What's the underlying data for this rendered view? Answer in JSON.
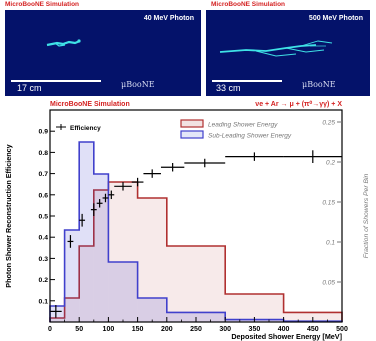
{
  "event_displays": [
    {
      "header": "MicroBooNE Simulation",
      "label": "40 MeV Photon",
      "scale": "17 cm",
      "logo": "μBooNE"
    },
    {
      "header": "MicroBooNE Simulation",
      "label": "500 MeV Photon",
      "scale": "33 cm",
      "logo": "μBooNE"
    }
  ],
  "colors": {
    "panel_bg": "#04126a",
    "header_red": "#d42222",
    "track": "#3fe2e6",
    "leading": "#b03030",
    "subleading": "#4040cc",
    "efficiency": "#000000",
    "right_axis": "#777777"
  },
  "chart_data": {
    "type": "histogram+errorbar",
    "title": "MicroBooNE Simulation",
    "process": "νe + Ar → μ + (π⁰→γγ) + X",
    "xlabel": "Deposited Shower Energy [MeV]",
    "ylabel": "Photon Shower Reconstruction Efficiency",
    "y2label": "Fraction of Showers Per Bin",
    "xlim": [
      0,
      500
    ],
    "ylim": [
      0,
      1.0
    ],
    "y2lim": [
      0,
      0.265
    ],
    "xticks": [
      "0",
      "50",
      "100",
      "150",
      "200",
      "250",
      "300",
      "350",
      "400",
      "450",
      "500"
    ],
    "yticks": [
      "0.1",
      "0.2",
      "0.3",
      "0.4",
      "0.5",
      "0.6",
      "0.7",
      "0.8",
      "0.9"
    ],
    "y2ticks": [
      "0.05",
      "0.1",
      "0.15",
      "0.2",
      "0.25"
    ],
    "legend_left": [
      "Efficiency"
    ],
    "legend_right": [
      "Leading Shower Energy",
      "Sub-Leading Shower Energy"
    ],
    "efficiency": {
      "name": "Efficiency",
      "points": [
        {
          "x": 10,
          "y": 0.05,
          "xerr": 10,
          "yerr": 0.03
        },
        {
          "x": 35,
          "y": 0.38,
          "xerr": 5,
          "yerr": 0.03
        },
        {
          "x": 55,
          "y": 0.48,
          "xerr": 5,
          "yerr": 0.03
        },
        {
          "x": 75,
          "y": 0.53,
          "xerr": 5,
          "yerr": 0.03
        },
        {
          "x": 85,
          "y": 0.56,
          "xerr": 5,
          "yerr": 0.02
        },
        {
          "x": 95,
          "y": 0.585,
          "xerr": 5,
          "yerr": 0.02
        },
        {
          "x": 105,
          "y": 0.6,
          "xerr": 5,
          "yerr": 0.02
        },
        {
          "x": 125,
          "y": 0.64,
          "xerr": 15,
          "yerr": 0.02
        },
        {
          "x": 150,
          "y": 0.66,
          "xerr": 10,
          "yerr": 0.02
        },
        {
          "x": 175,
          "y": 0.7,
          "xerr": 15,
          "yerr": 0.02
        },
        {
          "x": 210,
          "y": 0.73,
          "xerr": 20,
          "yerr": 0.02
        },
        {
          "x": 265,
          "y": 0.75,
          "xerr": 35,
          "yerr": 0.02
        },
        {
          "x": 350,
          "y": 0.78,
          "xerr": 50,
          "yerr": 0.02
        },
        {
          "x": 450,
          "y": 0.78,
          "xerr": 50,
          "yerr": 0.03
        }
      ]
    },
    "leading_hist": {
      "name": "Leading Shower Energy",
      "edges": [
        0,
        25,
        50,
        75,
        100,
        150,
        200,
        300,
        400,
        500
      ],
      "values": [
        0.005,
        0.03,
        0.095,
        0.165,
        0.175,
        0.155,
        0.095,
        0.035,
        0.012
      ]
    },
    "subleading_hist": {
      "name": "Sub-Leading Shower Energy",
      "edges": [
        0,
        25,
        50,
        75,
        100,
        150,
        200,
        300,
        400,
        500
      ],
      "values": [
        0.02,
        0.115,
        0.225,
        0.185,
        0.075,
        0.03,
        0.012,
        0.003,
        0.001
      ]
    }
  }
}
